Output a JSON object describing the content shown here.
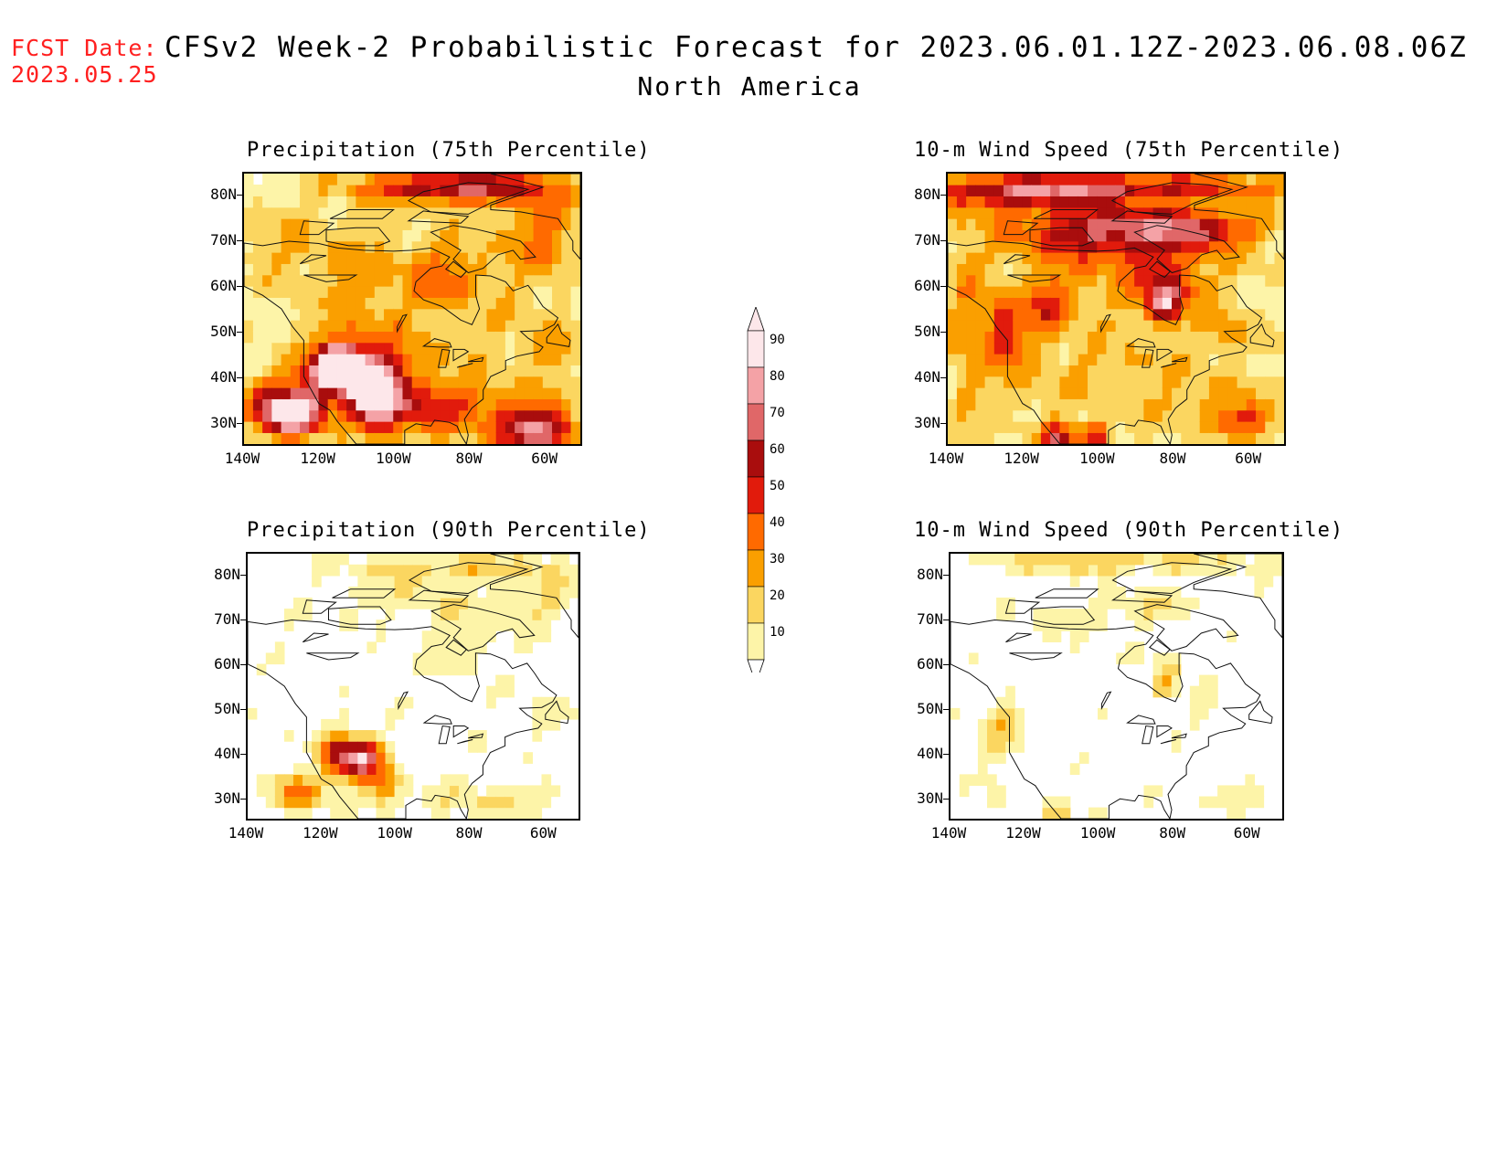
{
  "header": {
    "fcst_label": "FCST Date:",
    "fcst_date": "2023.05.25",
    "title": "CFSv2 Week-2 Probabilistic Forecast for 2023.06.01.12Z-2023.06.08.06Z",
    "subtitle": "North America"
  },
  "axes": {
    "lat_labels": [
      "80N",
      "70N",
      "60N",
      "50N",
      "40N",
      "30N"
    ],
    "lon_labels": [
      "140W",
      "120W",
      "100W",
      "80W",
      "60W"
    ]
  },
  "panels": [
    {
      "id": "precip75",
      "title": "Precipitation (75th Percentile)",
      "intensity": "high"
    },
    {
      "id": "wind75",
      "title": "10-m Wind Speed (75th Percentile)",
      "intensity": "high"
    },
    {
      "id": "precip90",
      "title": "Precipitation (90th Percentile)",
      "intensity": "low"
    },
    {
      "id": "wind90",
      "title": "10-m Wind Speed (90th Percentile)",
      "intensity": "low"
    }
  ],
  "colorbar": {
    "levels": [
      "90",
      "80",
      "70",
      "60",
      "50",
      "40",
      "30",
      "20",
      "10"
    ],
    "colors": [
      "#fde7ea",
      "#f4a2a6",
      "#e06768",
      "#a90d0d",
      "#e11b0c",
      "#ff6a00",
      "#fa9f00",
      "#fbd660",
      "#fdf4a8"
    ]
  },
  "map_domain": {
    "lon_range": [
      -140,
      -50
    ],
    "lat_range": [
      25,
      85
    ]
  }
}
